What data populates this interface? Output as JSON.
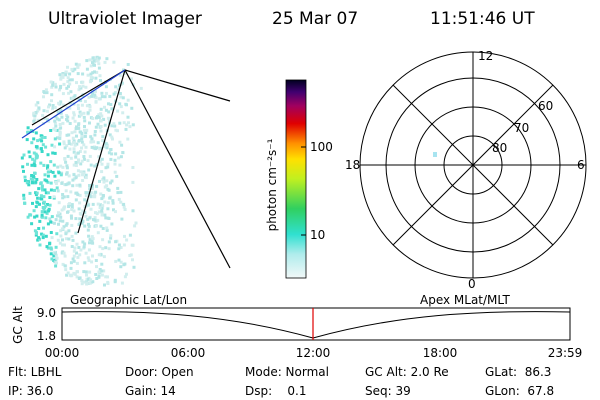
{
  "header": {
    "title": "Ultraviolet Imager",
    "date": "25 Mar 07",
    "time": "11:51:46 UT"
  },
  "colorbar": {
    "label": "photon cm⁻²s⁻¹",
    "ticks": [
      "100",
      "10"
    ]
  },
  "polar": {
    "mlt_labels": [
      "12",
      "18",
      "6",
      "0"
    ],
    "lat_labels": [
      "60",
      "70",
      "80"
    ]
  },
  "altitude_plot": {
    "left_title": "Geographic Lat/Lon",
    "right_title": "Apex MLat/MLT",
    "y_label": "GC Alt",
    "y_labels": [
      "9.0",
      "1.8"
    ],
    "x_labels": [
      "00:00",
      "06:00",
      "12:00",
      "18:00",
      "23:59"
    ]
  },
  "footer": {
    "rows": [
      [
        "Flt: LBHL",
        "Door: Open",
        "Mode: Normal",
        "GC Alt: 2.0 Re",
        "GLat:  86.3"
      ],
      [
        "IP: 36.0",
        "Gain: 14",
        "Dsp:    0.1",
        "Seq: 39",
        "GLon:  67.8"
      ]
    ]
  }
}
